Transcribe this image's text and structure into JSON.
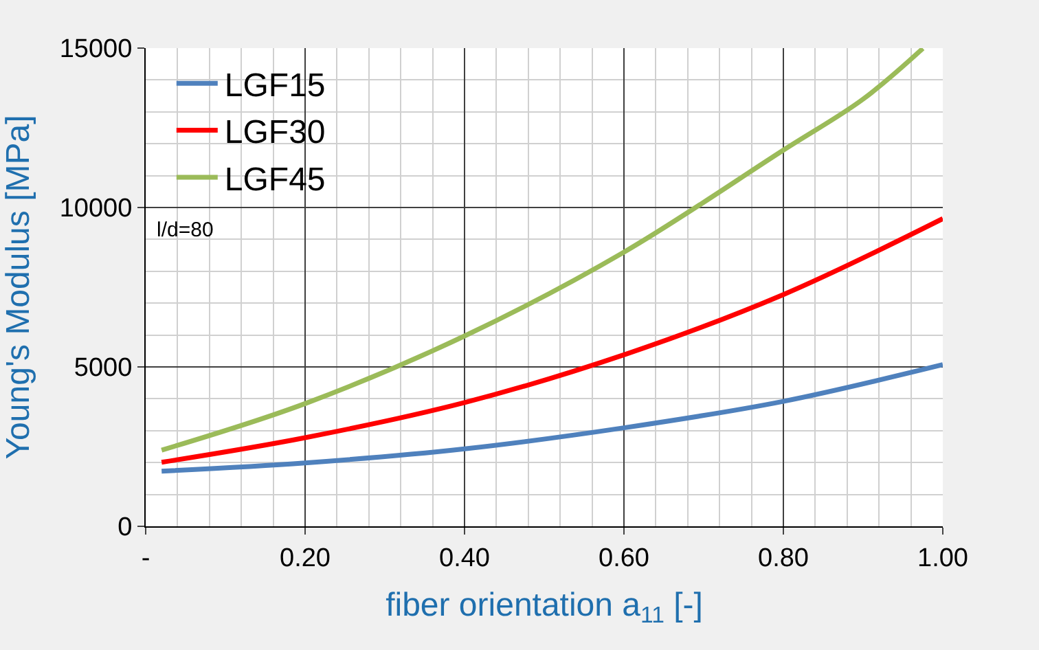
{
  "chart_data": {
    "type": "line",
    "xlabel": "fiber orientation a$_{11}$ [-]",
    "ylabel": "Young's Modulus [MPa]",
    "xlim": [
      0,
      1
    ],
    "xticks": [
      {
        "value": 0,
        "label": "-"
      },
      {
        "value": 0.2,
        "label": "0.20"
      },
      {
        "value": 0.4,
        "label": "0.40"
      },
      {
        "value": 0.6,
        "label": "0.60"
      },
      {
        "value": 0.8,
        "label": "0.80"
      },
      {
        "value": 1.0,
        "label": "1.00"
      }
    ],
    "ylim": [
      0,
      15000
    ],
    "yticks": [
      0,
      5000,
      10000,
      15000
    ],
    "grid": true,
    "legend": "top left",
    "marker": "none",
    "line_style": "solid",
    "annotations": [
      "l/d=80"
    ],
    "series": [
      {
        "name": "LGF15",
        "color": "#4f81bd",
        "x": [
          0.02,
          0.2,
          0.4,
          0.6,
          0.8,
          1.0
        ],
        "values": [
          1730,
          1990,
          2430,
          3090,
          3920,
          5070
        ]
      },
      {
        "name": "LGF30",
        "color": "#ff0000",
        "x": [
          0.02,
          0.2,
          0.4,
          0.6,
          0.8,
          1.0
        ],
        "values": [
          2010,
          2780,
          3880,
          5380,
          7270,
          9650
        ]
      },
      {
        "name": "LGF45",
        "color": "#9bbb59",
        "x": [
          0.02,
          0.2,
          0.4,
          0.6,
          0.8,
          0.9,
          0.975
        ],
        "values": [
          2390,
          3850,
          5970,
          8600,
          11800,
          13400,
          14990
        ]
      }
    ]
  }
}
